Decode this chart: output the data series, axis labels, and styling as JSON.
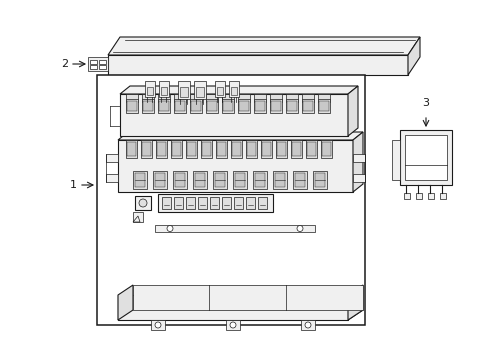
{
  "bg_color": "#ffffff",
  "lc": "#1a1a1a",
  "fig_width": 4.89,
  "fig_height": 3.6,
  "dpi": 100,
  "label_1": "1",
  "label_2": "2",
  "label_3": "3",
  "lw_thin": 0.5,
  "lw_med": 0.8,
  "lw_thick": 1.1,
  "fc_light": "#f0f0f0",
  "fc_mid": "#e0e0e0",
  "fc_dark": "#c8c8c8",
  "fc_white": "#ffffff"
}
